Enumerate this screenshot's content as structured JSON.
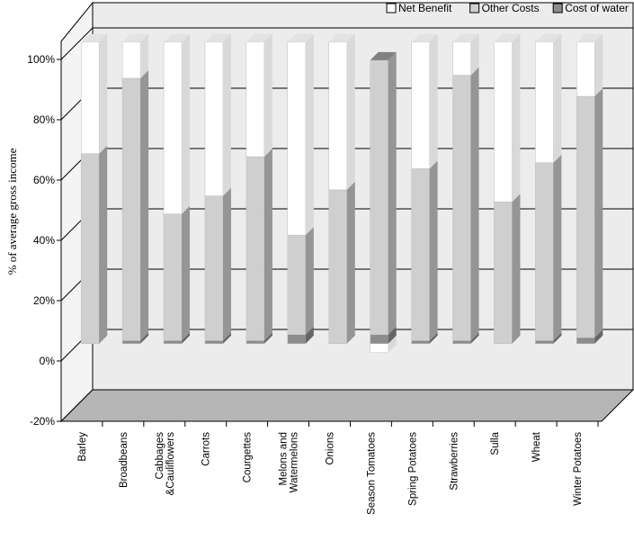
{
  "chart_data": {
    "type": "bar",
    "stacked": true,
    "style": "3d-percent-stacked",
    "ylabel": "% of average gross income",
    "xlabel": "",
    "ylim": [
      -20,
      100
    ],
    "yticks": [
      "-20%",
      "0%",
      "20%",
      "40%",
      "60%",
      "80%",
      "100%"
    ],
    "grid": true,
    "legend_position": "top-right",
    "categories": [
      "Barley",
      "Broadbeans",
      "Cabbages &Cauliflowers",
      "Carrots",
      "Courgettes",
      "Melons and Watermelons",
      "Onions",
      "Season Tomatoes",
      "Spring Potatoes",
      "Strawberries",
      "Sulla",
      "Wheat",
      "Winter Potatoes"
    ],
    "series": [
      {
        "name": "Net Benefit",
        "color": "#ffffff",
        "values": [
          37,
          12,
          57,
          51,
          38,
          64,
          49,
          -3,
          42,
          11,
          53,
          40,
          18
        ]
      },
      {
        "name": "Other Costs",
        "color": "#cfcfcf",
        "values": [
          63,
          87,
          42,
          48,
          61,
          33,
          51,
          91,
          57,
          88,
          47,
          59,
          80
        ]
      },
      {
        "name": "Cost of water",
        "color": "#8c8c8c",
        "values": [
          0,
          1,
          1,
          1,
          1,
          3,
          0,
          3,
          1,
          1,
          0,
          1,
          2
        ]
      }
    ]
  }
}
